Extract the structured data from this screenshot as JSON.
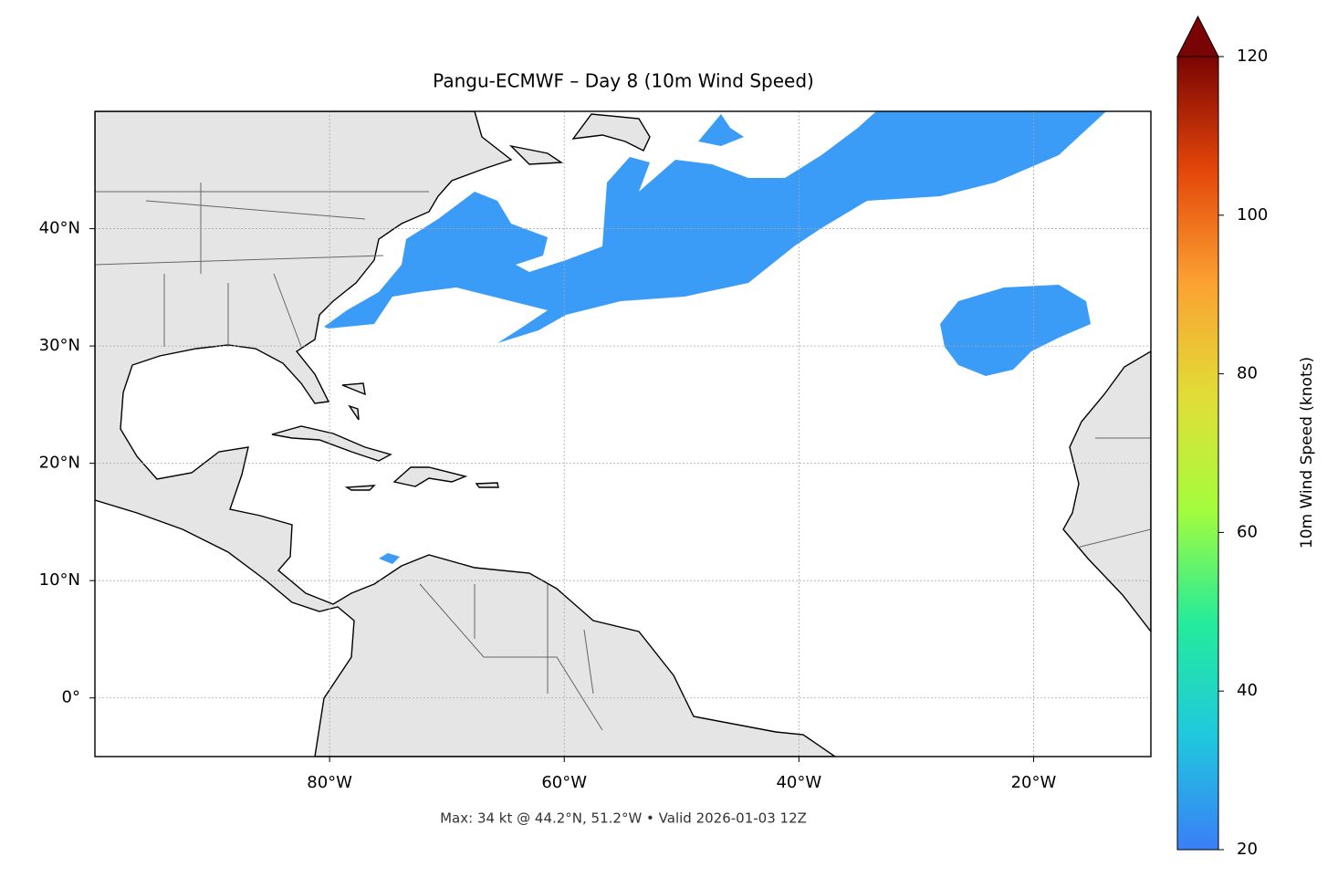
{
  "chart_data": {
    "type": "map",
    "title": "Pangu-ECMWF – Day 8 (10m Wind Speed)",
    "annotation": "Max: 34 kt @ 44.2°N, 51.2°W • Valid 2026-01-03 12Z",
    "xlim": [
      -100,
      -10
    ],
    "ylim": [
      -5,
      50
    ],
    "xticks": [
      {
        "value": -80,
        "label": "80°W"
      },
      {
        "value": -60,
        "label": "60°W"
      },
      {
        "value": -40,
        "label": "40°W"
      },
      {
        "value": -20,
        "label": "20°W"
      }
    ],
    "yticks": [
      {
        "value": 0,
        "label": "0°"
      },
      {
        "value": 10,
        "label": "10°N"
      },
      {
        "value": 20,
        "label": "20°N"
      },
      {
        "value": 30,
        "label": "30°N"
      },
      {
        "value": 40,
        "label": "40°N"
      }
    ],
    "grid": true,
    "colorbar": {
      "label": "10m Wind Speed (knots)",
      "lim": [
        20,
        120
      ],
      "ticks": [
        20,
        40,
        60,
        80,
        100,
        120
      ],
      "colors": [
        "#3b7ef7",
        "#1fc8dd",
        "#24eb9b",
        "#a4fc3c",
        "#e1dd37",
        "#fba232",
        "#e4460a",
        "#7a0403"
      ]
    }
  }
}
